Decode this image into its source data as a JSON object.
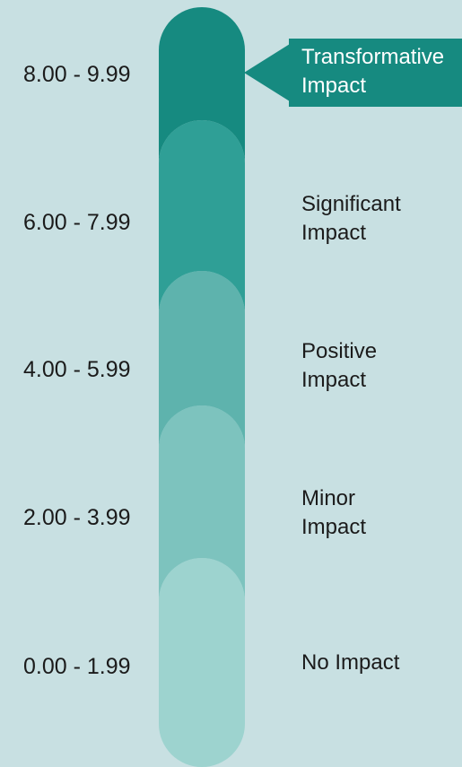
{
  "scale": {
    "levels": [
      {
        "range": "8.00 - 9.99",
        "label_lines": [
          "Transformative",
          "Impact"
        ],
        "color": "#168a80",
        "highlighted": true
      },
      {
        "range": "6.00 - 7.99",
        "label_lines": [
          "Significant",
          "Impact"
        ],
        "color": "#2f9f96",
        "highlighted": false
      },
      {
        "range": "4.00 - 5.99",
        "label_lines": [
          "Positive",
          "Impact"
        ],
        "color": "#5eb3ad",
        "highlighted": false
      },
      {
        "range": "2.00 - 3.99",
        "label_lines": [
          "Minor",
          "Impact"
        ],
        "color": "#7dc3be",
        "highlighted": false
      },
      {
        "range": "0.00 - 1.99",
        "label_lines": [
          "No Impact"
        ],
        "color": "#9dd3cf",
        "highlighted": false
      }
    ]
  },
  "colors": {
    "background": "#c8e0e2",
    "callout": "#168a80",
    "callout_text": "#ffffff",
    "text": "#1b1b1b"
  }
}
